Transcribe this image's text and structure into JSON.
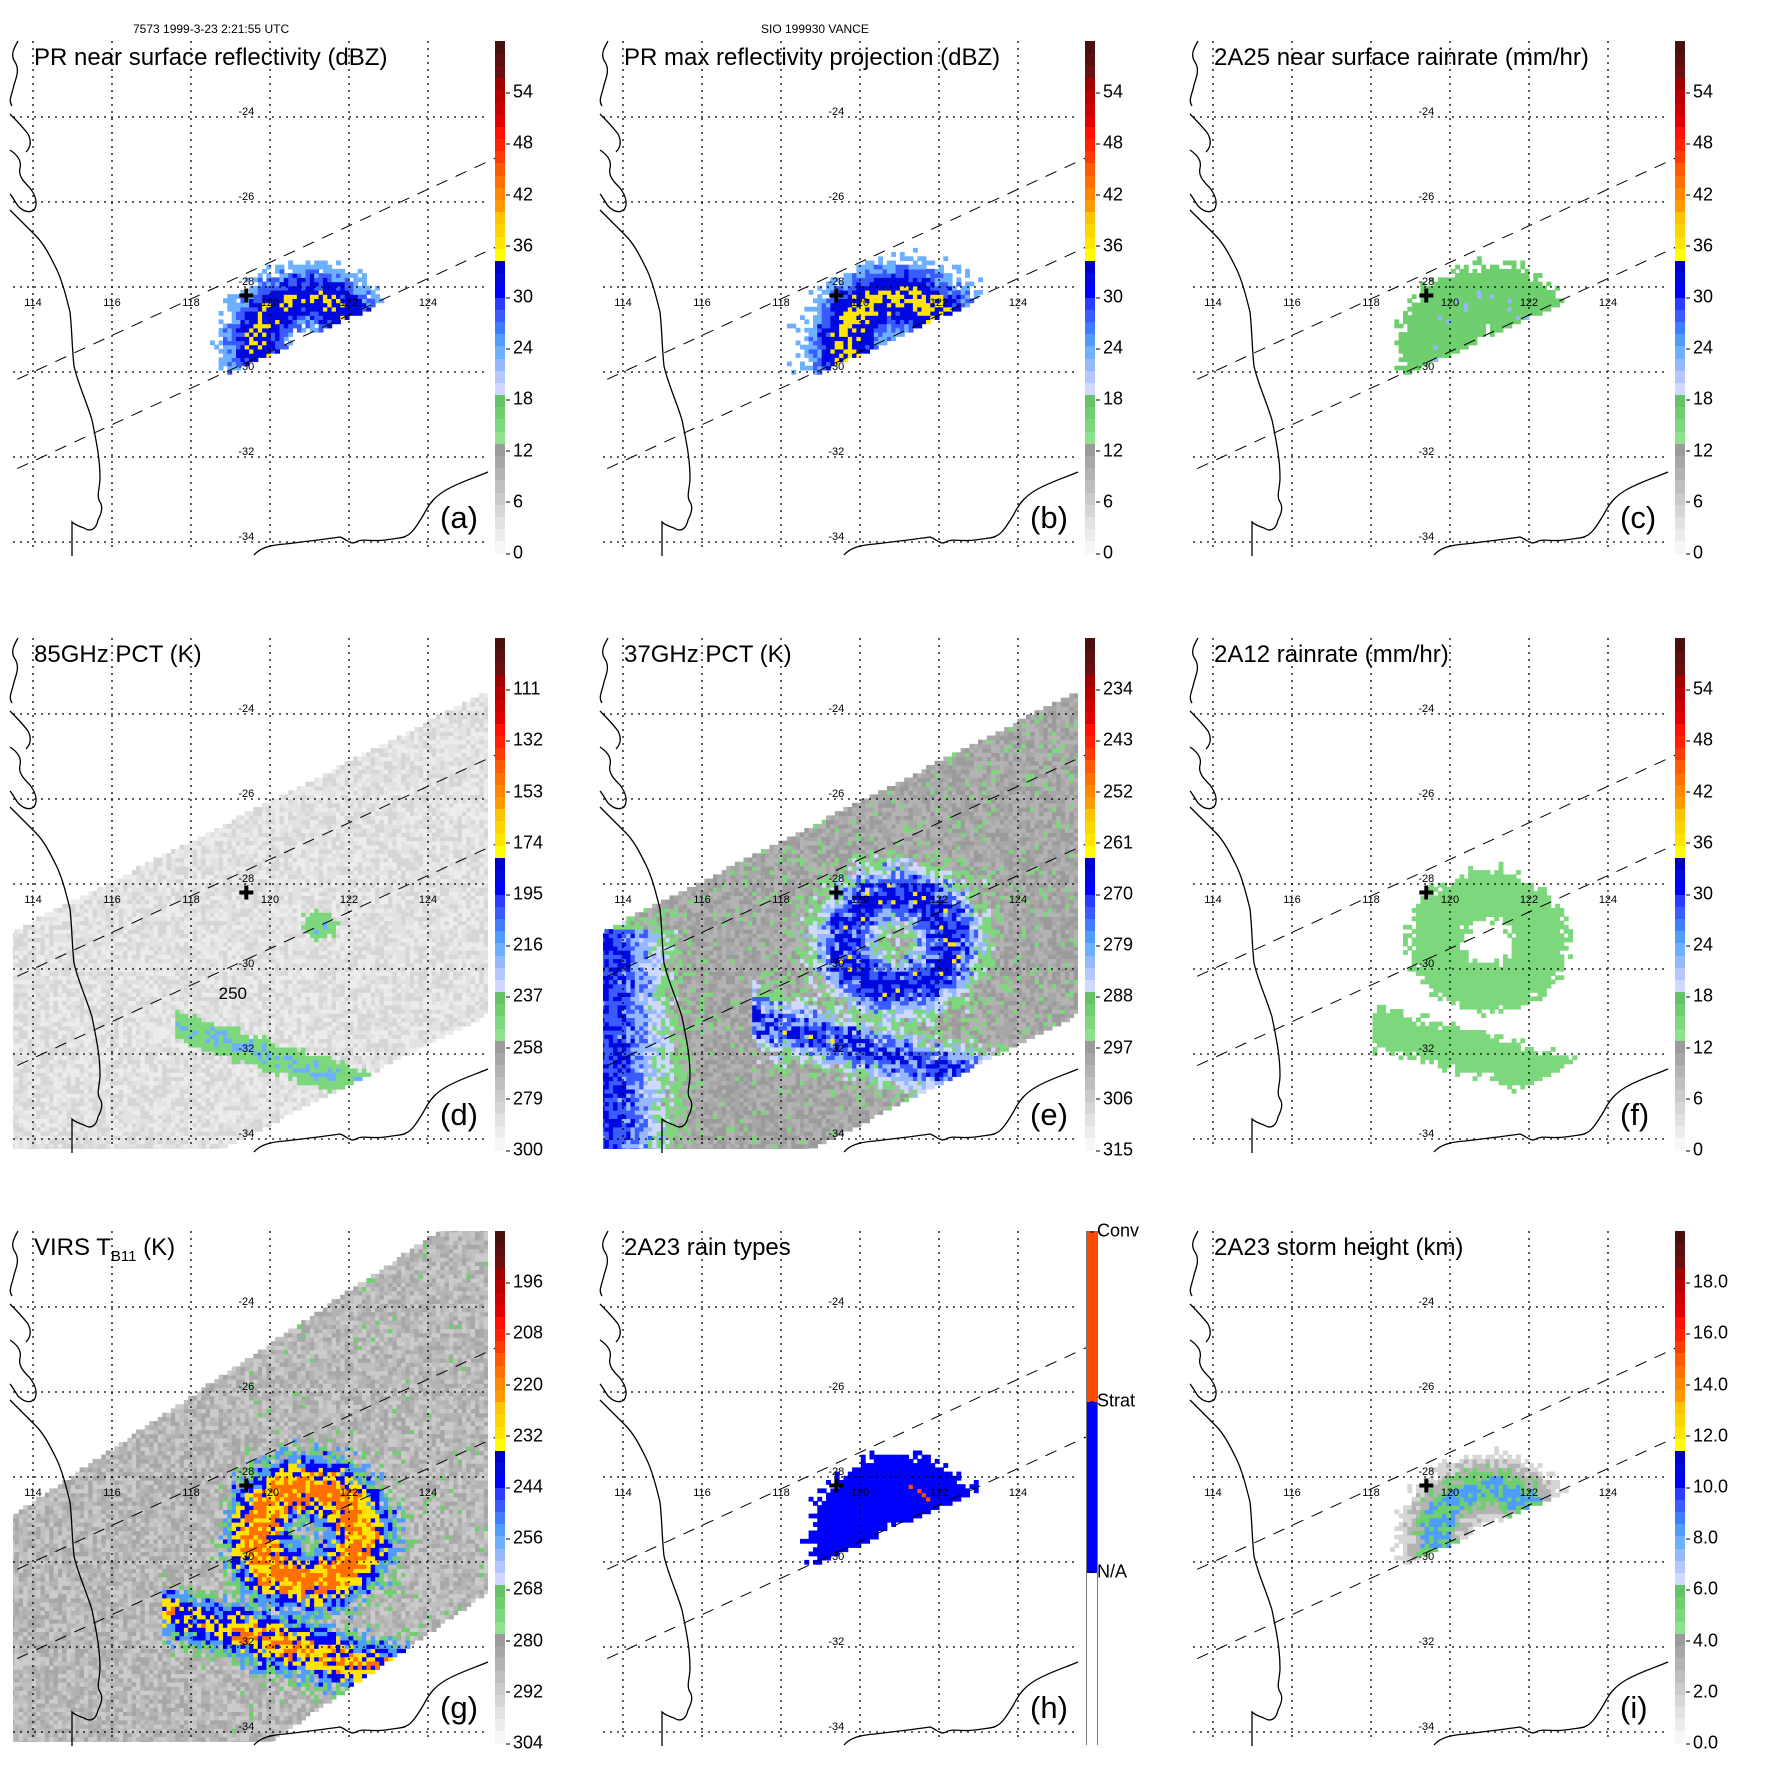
{
  "header": {
    "orbit_time": "7573 1999-3-23 2:21:55 UTC",
    "storm_id": "SIO 199930 VANCE"
  },
  "axes": {
    "lon_ticks": [
      "114",
      "116",
      "118",
      "120",
      "122",
      "124"
    ],
    "lat_ticks": [
      "-24",
      "-26",
      "-28",
      "-30",
      "-32",
      "-34"
    ],
    "lon_values": [
      114,
      116,
      118,
      120,
      122,
      124
    ],
    "lat_values": [
      -24,
      -26,
      -28,
      -30,
      -32,
      -34
    ],
    "storm_center": {
      "lon": 119.4,
      "lat": -28.2
    }
  },
  "chart_data": [
    {
      "type": "heatmap",
      "panel": "a",
      "title": "PR near surface reflectivity (dBZ)",
      "label": "(a)",
      "colorbar_ticks": [
        "54",
        "48",
        "42",
        "36",
        "30",
        "24",
        "18",
        "12",
        "6",
        "0"
      ],
      "colorbar_range": [
        0,
        60
      ],
      "swath": "narrow",
      "field": "pr_nsr"
    },
    {
      "type": "heatmap",
      "panel": "b",
      "title": "PR max reflectivity projection (dBZ)",
      "label": "(b)",
      "colorbar_ticks": [
        "54",
        "48",
        "42",
        "36",
        "30",
        "24",
        "18",
        "12",
        "6",
        "0"
      ],
      "colorbar_range": [
        0,
        60
      ],
      "swath": "narrow",
      "field": "pr_max"
    },
    {
      "type": "heatmap",
      "panel": "c",
      "title": "2A25 near surface rainrate (mm/hr)",
      "label": "(c)",
      "colorbar_ticks": [
        "54",
        "48",
        "42",
        "36",
        "30",
        "24",
        "18",
        "12",
        "6",
        "0"
      ],
      "colorbar_range": [
        0,
        60
      ],
      "swath": "narrow",
      "field": "2a25"
    },
    {
      "type": "heatmap",
      "panel": "d",
      "title": "85GHz PCT (K)",
      "label": "(d)",
      "colorbar_ticks": [
        "111",
        "132",
        "153",
        "174",
        "195",
        "216",
        "237",
        "258",
        "279",
        "300"
      ],
      "colorbar_range": [
        300,
        90
      ],
      "contour_label": "250",
      "swath": "wide",
      "field": "pct85"
    },
    {
      "type": "heatmap",
      "panel": "e",
      "title": "37GHz PCT (K)",
      "label": "(e)",
      "colorbar_ticks": [
        "234",
        "243",
        "252",
        "261",
        "270",
        "279",
        "288",
        "297",
        "306",
        "315"
      ],
      "colorbar_range": [
        315,
        225
      ],
      "swath": "wide",
      "field": "pct37"
    },
    {
      "type": "heatmap",
      "panel": "f",
      "title": "2A12 rainrate (mm/hr)",
      "label": "(f)",
      "colorbar_ticks": [
        "54",
        "48",
        "42",
        "36",
        "30",
        "24",
        "18",
        "12",
        "6",
        "0"
      ],
      "colorbar_range": [
        0,
        60
      ],
      "swath": "wide",
      "field": "2a12"
    },
    {
      "type": "heatmap",
      "panel": "g",
      "title": "VIRS T",
      "title_sub": "B11",
      "title_suffix": " (K)",
      "label": "(g)",
      "colorbar_ticks": [
        "196",
        "208",
        "220",
        "232",
        "244",
        "256",
        "268",
        "280",
        "292",
        "304"
      ],
      "colorbar_range": [
        304,
        184
      ],
      "swath": "virs",
      "field": "virs"
    },
    {
      "type": "heatmap",
      "panel": "h",
      "title": "2A23 rain types",
      "label": "(h)",
      "colorbar_categories": [
        "Conv",
        "Strat",
        "N/A"
      ],
      "swath": "narrow",
      "field": "raintype"
    },
    {
      "type": "heatmap",
      "panel": "i",
      "title": "2A23 storm height (km)",
      "label": "(i)",
      "colorbar_ticks": [
        "18.0",
        "16.0",
        "14.0",
        "12.0",
        "10.0",
        "8.0",
        "6.0",
        "4.0",
        "2.0",
        "0.0"
      ],
      "colorbar_range": [
        0,
        20
      ],
      "swath": "narrow",
      "field": "stormht"
    }
  ],
  "colors": {
    "palette": [
      "#f7f7f7",
      "#ececec",
      "#e2e2e2",
      "#d6d6d6",
      "#cbcbcb",
      "#bfbfbf",
      "#b3b3b3",
      "#a7a7a7",
      "#9b9b9b",
      "#8fe08f",
      "#7dd87d",
      "#6fcf6f",
      "#66c266",
      "#cfd8ff",
      "#b4c8ff",
      "#95b8ff",
      "#6db0ff",
      "#4f9cff",
      "#3f7cff",
      "#3a5bff",
      "#2a3cff",
      "#0000ff",
      "#0008e0",
      "#0000cc",
      "#ffff00",
      "#ffe500",
      "#ffd500",
      "#ffc400",
      "#ff9a00",
      "#ff8800",
      "#ff7000",
      "#ff5a00",
      "#ff3a00",
      "#ff2200",
      "#ff1000",
      "#e00000",
      "#cc0000",
      "#b80000",
      "#a00000",
      "#6a1010",
      "#5a1010",
      "#4a1010"
    ],
    "conv": "#ff4a00",
    "strat": "#0000ff"
  }
}
